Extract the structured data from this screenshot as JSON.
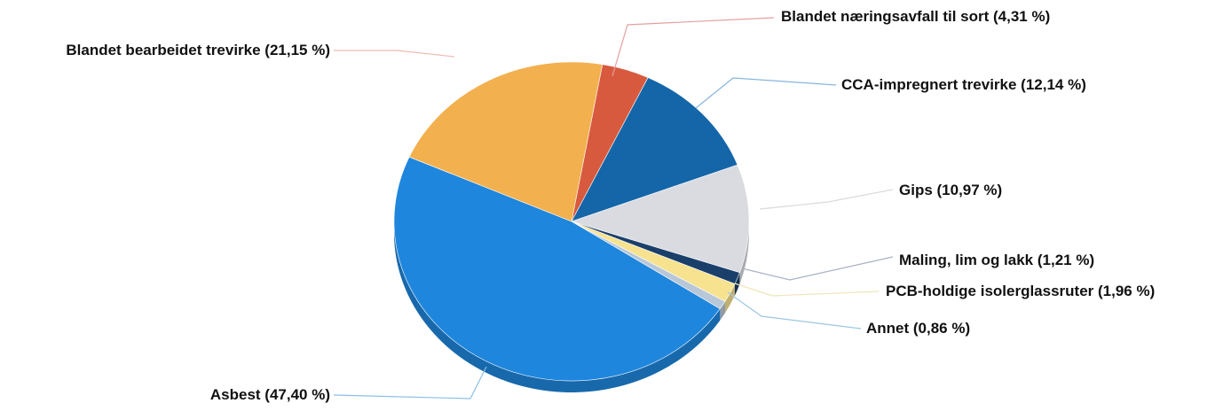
{
  "chart_data": {
    "type": "pie",
    "title": "",
    "slices": [
      {
        "label": "Blandet næringsavfall til sort (4,31 %)",
        "value": 4.31,
        "color": "#d85a3e"
      },
      {
        "label": "CCA-impregnert trevirke (12,14 %)",
        "value": 12.14,
        "color": "#1466a8"
      },
      {
        "label": "Gips (10,97 %)",
        "value": 10.97,
        "color": "#dadbe0"
      },
      {
        "label": "Maling, lim og lakk (1,21 %)",
        "value": 1.21,
        "color": "#1b3f6b"
      },
      {
        "label": "PCB-holdige isolerglassruter (1,96 %)",
        "value": 1.96,
        "color": "#f6e28f"
      },
      {
        "label": "Annet (0,86 %)",
        "value": 0.86,
        "color": "#b8c7d8"
      },
      {
        "label": "Asbest (47,40 %)",
        "value": 47.4,
        "color": "#1f86dd"
      },
      {
        "label": "Blandet bearbeidet trevirke (21,15 %)",
        "value": 21.15,
        "color": "#f2b04e"
      }
    ],
    "legend": "none",
    "data_labels": "outside with leader lines"
  }
}
